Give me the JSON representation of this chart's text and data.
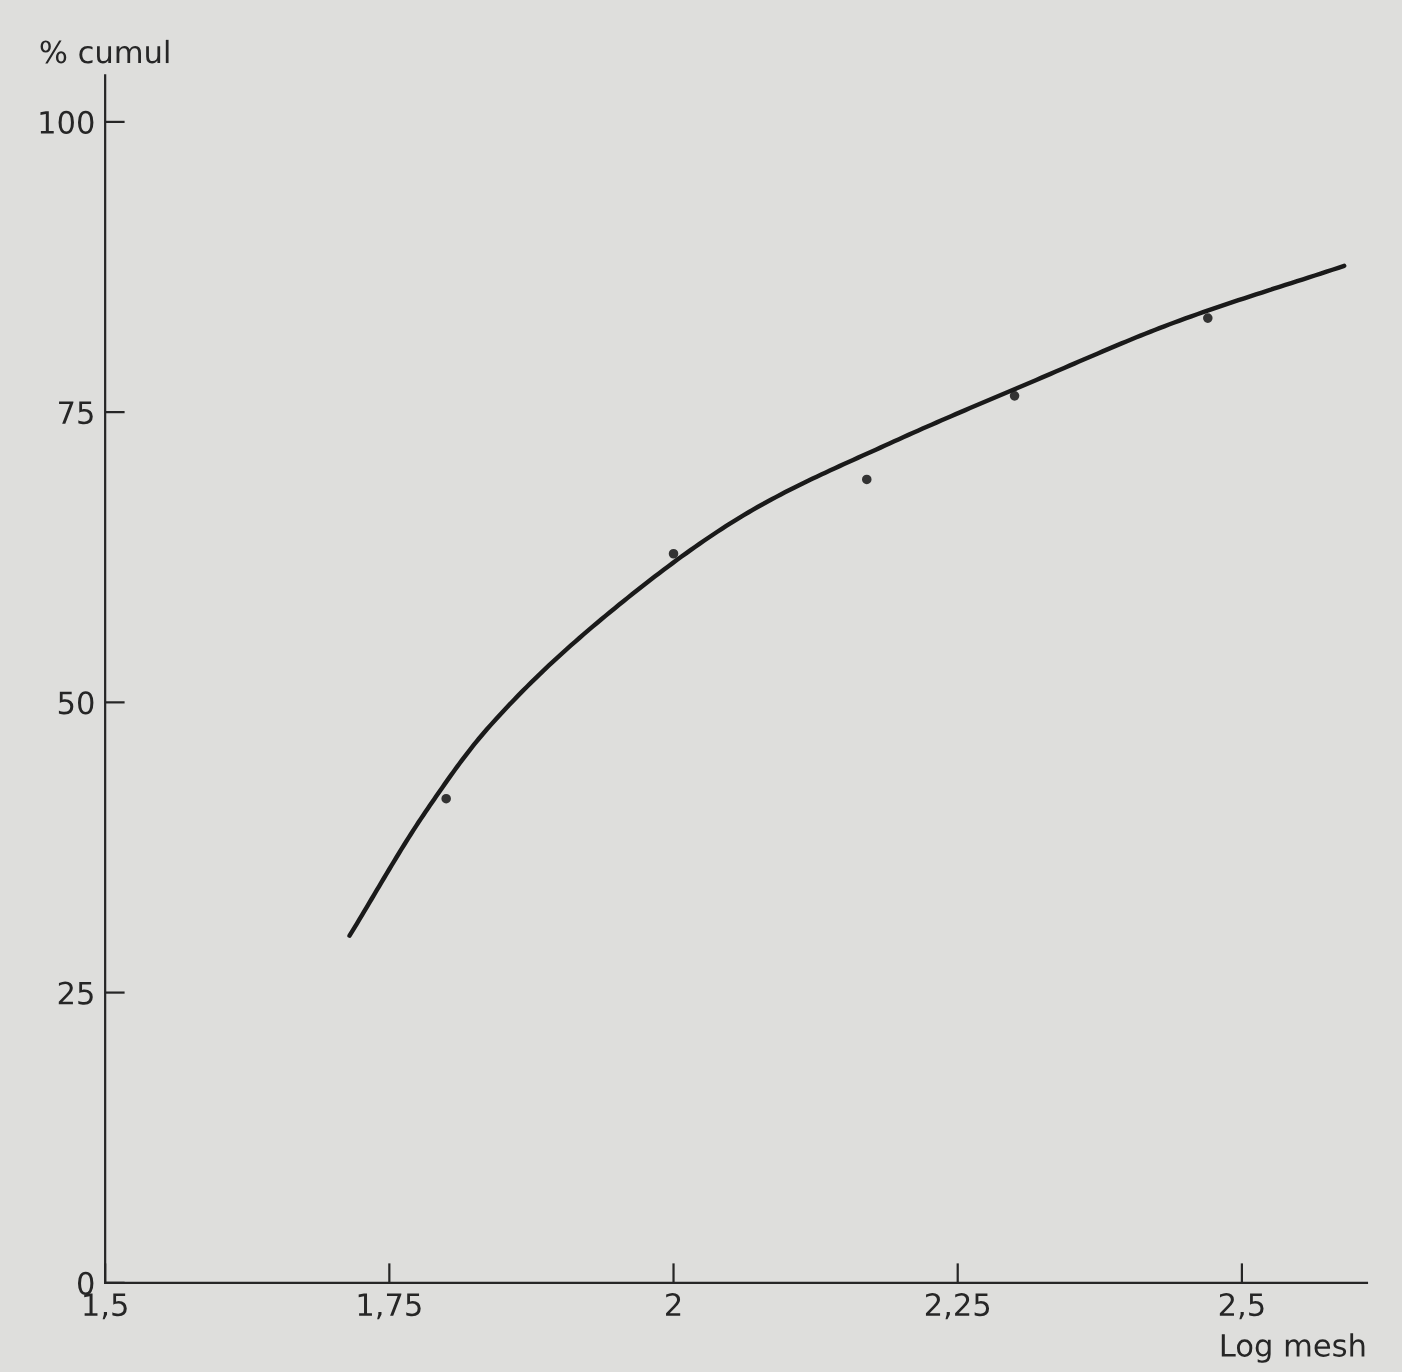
{
  "chart_data": {
    "type": "line",
    "xlabel": "Log mesh",
    "ylabel": "% cumul",
    "xlim": [
      1.5,
      2.61
    ],
    "ylim": [
      0,
      104
    ],
    "xticks": [
      {
        "value": 1.5,
        "label": "1,5"
      },
      {
        "value": 1.75,
        "label": "1,75"
      },
      2,
      {
        "value": 2.25,
        "label": "2,25"
      },
      {
        "value": 2.5,
        "label": "2,5"
      }
    ],
    "yticks": [
      0,
      25,
      50,
      75,
      100
    ],
    "grid": false,
    "legend": false,
    "series": [
      {
        "color": "#1a1a1a",
        "x": [
          1.715,
          1.78,
          1.836,
          1.952,
          2.07,
          2.19,
          2.315,
          2.44,
          2.59
        ],
        "values": [
          29.9,
          40.3,
          47.7,
          58.4,
          66.6,
          72.3,
          77.6,
          82.7,
          87.6
        ]
      },
      {
        "type": "scatter",
        "color": "#333333",
        "marker": "circle",
        "x": [
          1.8,
          2.0,
          2.17,
          2.3,
          2.47
        ],
        "values": [
          41.7,
          62.8,
          69.2,
          76.4,
          83.1
        ]
      }
    ]
  }
}
